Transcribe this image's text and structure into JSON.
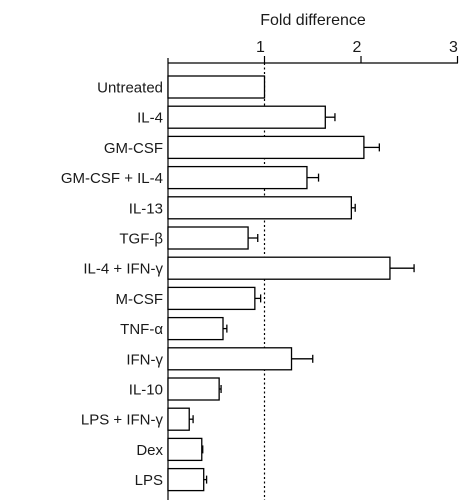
{
  "chart_data": {
    "type": "bar",
    "orientation": "horizontal",
    "title": "",
    "xlabel": "Fold difference",
    "ylabel": "",
    "xlim": [
      0,
      3
    ],
    "xticks": [
      1,
      2,
      3
    ],
    "x_axis_position": "top",
    "reference_line": {
      "x": 1,
      "style": "dotted"
    },
    "grid": false,
    "error_bars": true,
    "categories": [
      "Untreated",
      "IL-4",
      "GM-CSF",
      "GM-CSF + IL-4",
      "IL-13",
      "TGF-β",
      "IL-4 + IFN-γ",
      "M-CSF",
      "TNF-α",
      "IFN-γ",
      "IL-10",
      "LPS + IFN-γ",
      "Dex",
      "LPS"
    ],
    "values": [
      1.0,
      1.63,
      2.03,
      1.44,
      1.9,
      0.83,
      2.3,
      0.9,
      0.57,
      1.28,
      0.53,
      0.22,
      0.35,
      0.37
    ],
    "errors": [
      0.0,
      0.1,
      0.16,
      0.12,
      0.04,
      0.1,
      0.25,
      0.06,
      0.04,
      0.22,
      0.02,
      0.04,
      0.01,
      0.03
    ],
    "bar_color": "#ffffff",
    "bar_edge_color": "#000000"
  }
}
